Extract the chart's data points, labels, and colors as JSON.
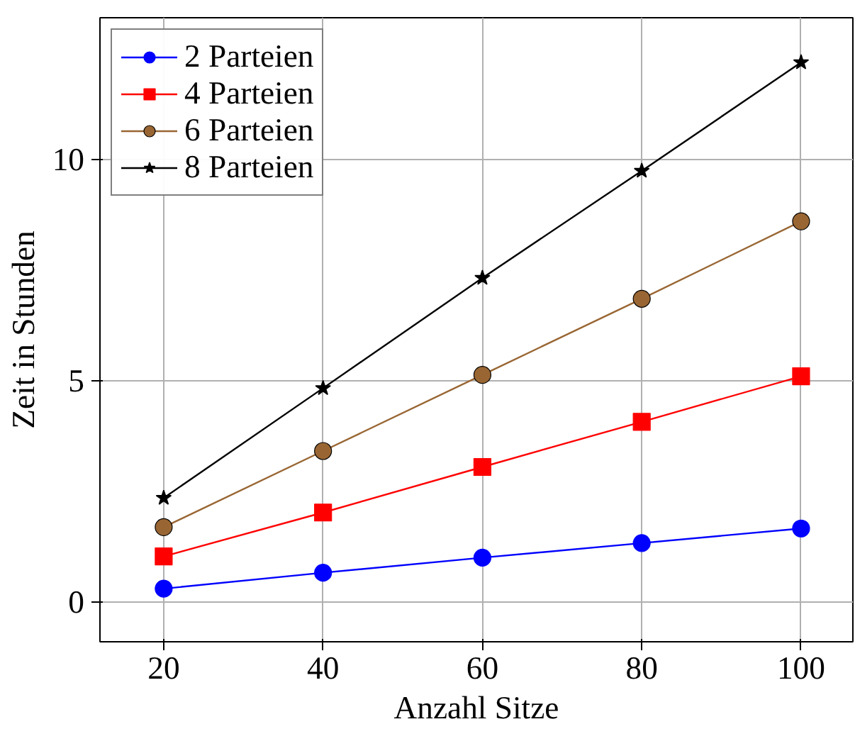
{
  "chart_data": {
    "type": "line",
    "xlabel": "Anzahl Sitze",
    "ylabel": "Zeit in Stunden",
    "x": [
      20,
      40,
      60,
      80,
      100
    ],
    "series": [
      {
        "name": "2 Parteien",
        "color": "#0000ff",
        "marker": "circle",
        "values": [
          0.3,
          0.66,
          1.0,
          1.33,
          1.66
        ]
      },
      {
        "name": "4 Parteien",
        "color": "#ff0000",
        "marker": "square",
        "values": [
          1.03,
          2.02,
          3.05,
          4.07,
          5.1
        ]
      },
      {
        "name": "6 Parteien",
        "color": "#996633",
        "marker": "circle",
        "values": [
          1.69,
          3.41,
          5.13,
          6.85,
          8.6
        ]
      },
      {
        "name": "8 Parteien",
        "color": "#000000",
        "marker": "star",
        "values": [
          2.35,
          4.83,
          7.32,
          9.74,
          12.19
        ]
      }
    ],
    "xlim": [
      12,
      106.5
    ],
    "ylim": [
      -0.9,
      13.2
    ],
    "xticks": [
      20,
      40,
      60,
      80,
      100
    ],
    "yticks": [
      0,
      5,
      10
    ],
    "grid": true,
    "legend": "top left",
    "line_style": "solid"
  }
}
